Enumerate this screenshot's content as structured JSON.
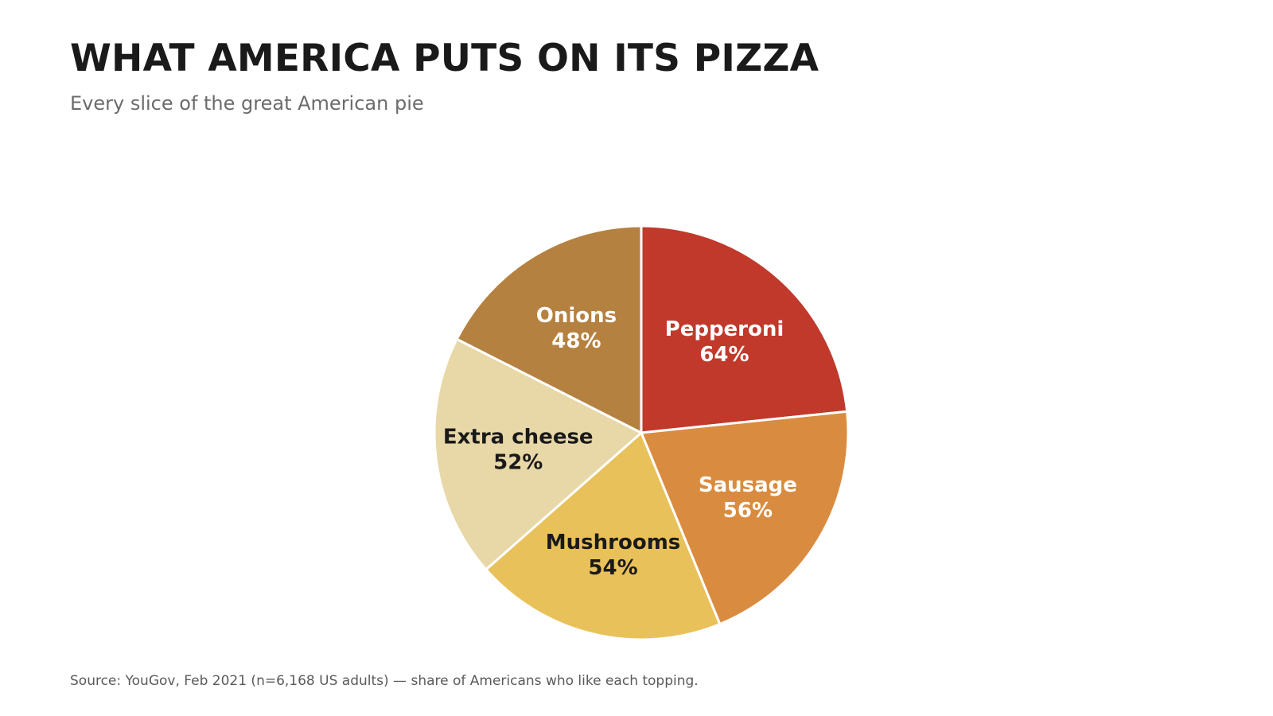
{
  "header": {
    "title": "WHAT AMERICA PUTS ON ITS PIZZA",
    "subtitle": "Every slice of the great American pie"
  },
  "chart_data": {
    "type": "pie",
    "title": "WHAT AMERICA PUTS ON ITS PIZZA",
    "subtitle": "Every slice of the great American pie",
    "start_angle": "top",
    "direction": "clockwise",
    "slices": [
      {
        "label": "Pepperoni",
        "value": 64,
        "value_label": "64%",
        "color": "#c0392b",
        "text_color": "#ffffff"
      },
      {
        "label": "Sausage",
        "value": 56,
        "value_label": "56%",
        "color": "#d98c40",
        "text_color": "#ffffff"
      },
      {
        "label": "Mushrooms",
        "value": 54,
        "value_label": "54%",
        "color": "#e8c15a",
        "text_color": "#1a1a1a"
      },
      {
        "label": "Extra cheese",
        "value": 52,
        "value_label": "52%",
        "color": "#e8d8a8",
        "text_color": "#1a1a1a"
      },
      {
        "label": "Onions",
        "value": 48,
        "value_label": "48%",
        "color": "#b58140",
        "text_color": "#ffffff"
      }
    ],
    "edge_color": "#ffffff"
  },
  "footer": {
    "source": "Source: YouGov, Feb 2021 (n=6,168 US adults) — share of Americans who like each topping."
  }
}
